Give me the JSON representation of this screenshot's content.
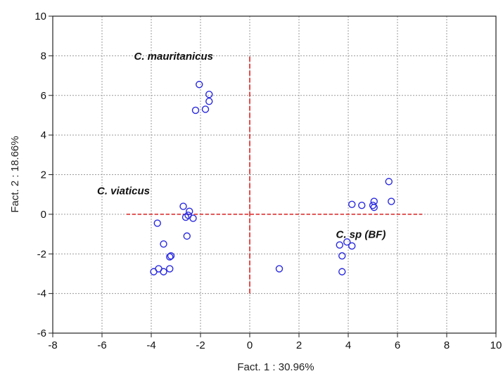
{
  "chart_data": {
    "type": "scatter",
    "xlabel": "Fact. 1 : 30.96%",
    "ylabel": "Fact. 2 : 18.66%",
    "xlim": [
      -8,
      10
    ],
    "ylim": [
      -6,
      10
    ],
    "x_ticks": [
      -8,
      -6,
      -4,
      -2,
      0,
      2,
      4,
      6,
      8,
      10
    ],
    "y_ticks": [
      -6,
      -4,
      -2,
      0,
      2,
      4,
      6,
      8,
      10
    ],
    "x_tick_labels": [
      "-8",
      "-6",
      "-4",
      "-2",
      "0",
      "2",
      "4",
      "6",
      "8",
      "10"
    ],
    "y_tick_labels": [
      "-6",
      "-4",
      "-2",
      "0",
      "2",
      "4",
      "6",
      "8",
      "10"
    ],
    "grid": true,
    "marker_color": "#2a2ae0",
    "reference_line_color": "#e02020",
    "reference_lines": {
      "horizontal": {
        "y": 0,
        "x_from": -5,
        "x_to": 7
      },
      "vertical": {
        "x": 0,
        "y_from": -4,
        "y_to": 8
      }
    },
    "annotations": [
      {
        "text": "C. mauritanicus",
        "x": -4.7,
        "y": 7.8
      },
      {
        "text": "C. viaticus",
        "x": -6.2,
        "y": 1.0
      },
      {
        "text": "C. sp (BF)",
        "x": 3.5,
        "y": -1.2
      }
    ],
    "points": [
      {
        "x": -2.05,
        "y": 6.55
      },
      {
        "x": -1.65,
        "y": 6.05
      },
      {
        "x": -1.65,
        "y": 5.7
      },
      {
        "x": -1.8,
        "y": 5.3
      },
      {
        "x": -2.2,
        "y": 5.25
      },
      {
        "x": -2.7,
        "y": 0.4
      },
      {
        "x": -2.45,
        "y": 0.15
      },
      {
        "x": -2.5,
        "y": -0.05
      },
      {
        "x": -2.6,
        "y": -0.15
      },
      {
        "x": -2.3,
        "y": -0.2
      },
      {
        "x": -3.75,
        "y": -0.45
      },
      {
        "x": -2.55,
        "y": -1.1
      },
      {
        "x": -3.5,
        "y": -1.5
      },
      {
        "x": -3.2,
        "y": -2.1
      },
      {
        "x": -3.25,
        "y": -2.15
      },
      {
        "x": -3.7,
        "y": -2.75
      },
      {
        "x": -3.25,
        "y": -2.75
      },
      {
        "x": -3.9,
        "y": -2.9
      },
      {
        "x": -3.5,
        "y": -2.9
      },
      {
        "x": 1.2,
        "y": -2.75
      },
      {
        "x": 5.65,
        "y": 1.65
      },
      {
        "x": 4.15,
        "y": 0.5
      },
      {
        "x": 4.55,
        "y": 0.45
      },
      {
        "x": 5.05,
        "y": 0.65
      },
      {
        "x": 5.0,
        "y": 0.45
      },
      {
        "x": 5.05,
        "y": 0.35
      },
      {
        "x": 5.75,
        "y": 0.65
      },
      {
        "x": 3.95,
        "y": -1.4
      },
      {
        "x": 3.65,
        "y": -1.55
      },
      {
        "x": 4.15,
        "y": -1.6
      },
      {
        "x": 3.75,
        "y": -2.1
      },
      {
        "x": 3.75,
        "y": -2.9
      }
    ]
  }
}
